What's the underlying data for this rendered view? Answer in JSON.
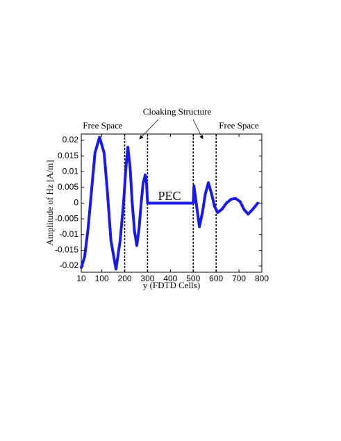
{
  "chart_data": {
    "type": "line",
    "x_label": "y (FDTD Cells)",
    "y_label": "Amplitude of Hz [A/m]",
    "annotations": [
      "Free Space",
      "Cloaking Structure",
      "Free Space",
      "PEC"
    ],
    "color": "#1a1ae6",
    "x": [
      10,
      25,
      40,
      55,
      70,
      90,
      110,
      125,
      140,
      162,
      180,
      195,
      205,
      214,
      224,
      233,
      243,
      253,
      263,
      272,
      281,
      290,
      296,
      300,
      400,
      500,
      503,
      513,
      527,
      540,
      553,
      566,
      580,
      593,
      606,
      625,
      645,
      665,
      685,
      705,
      722,
      740,
      760,
      782
    ],
    "values": [
      -0.0205,
      -0.017,
      -0.008,
      0.004,
      0.016,
      0.021,
      0.016,
      0.003,
      -0.012,
      -0.021,
      -0.012,
      0,
      0.011,
      0.0178,
      0.011,
      0,
      -0.009,
      -0.0135,
      -0.008,
      0,
      0.0065,
      0.009,
      0.006,
      0,
      0,
      0,
      0.0055,
      0,
      -0.0075,
      -0.003,
      0.003,
      0.0065,
      0.003,
      -0.001,
      -0.003,
      -0.002,
      0,
      0.0012,
      0.0015,
      0.0005,
      -0.002,
      -0.0035,
      -0.002,
      0
    ],
    "boundaries": [
      200,
      300,
      500,
      600
    ],
    "xlim": [
      10,
      800
    ],
    "ylim": [
      -0.022,
      0.022
    ],
    "xticks": [
      10,
      100,
      200,
      300,
      400,
      500,
      600,
      700,
      800
    ],
    "yticks": [
      0.02,
      0.015,
      0.01,
      0.005,
      0,
      -0.005,
      -0.01,
      -0.015,
      -0.02
    ]
  }
}
